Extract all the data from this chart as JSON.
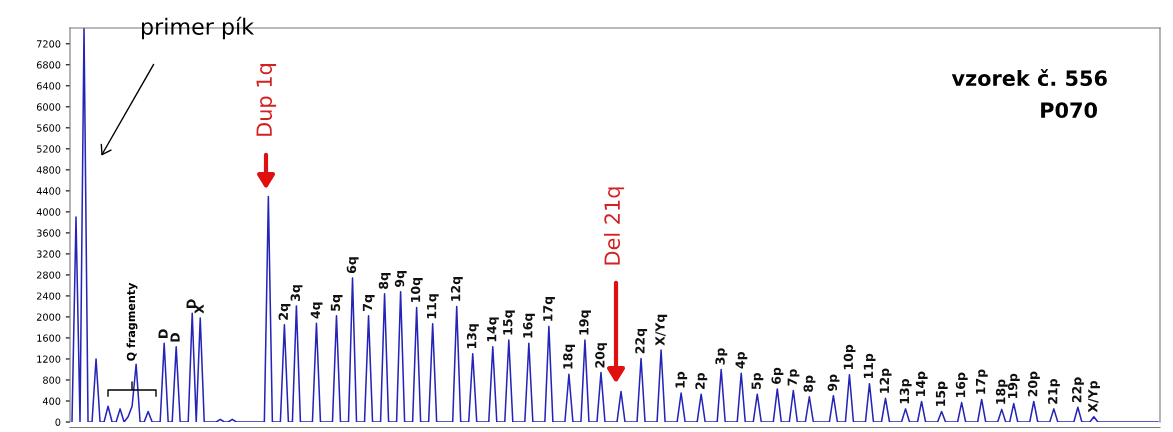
{
  "chart_data": {
    "type": "line",
    "categories": [
      null,
      null,
      null,
      null,
      null,
      null,
      null,
      null,
      null,
      null,
      null,
      null,
      null,
      null,
      null,
      null,
      null,
      null,
      null,
      null,
      null,
      null,
      null,
      "D",
      null,
      null,
      "D",
      null,
      null,
      null,
      "D",
      null,
      "X",
      null,
      null,
      null,
      null,
      null,
      null,
      null,
      null,
      null,
      null,
      null,
      null,
      null,
      null,
      null,
      null,
      null,
      null,
      null,
      null,
      "2q",
      null,
      null,
      "3q",
      null,
      null,
      null,
      null,
      "4q",
      null,
      null,
      null,
      null,
      "5q",
      null,
      null,
      null,
      "6q",
      null,
      null,
      null,
      "7q",
      null,
      null,
      null,
      "8q",
      null,
      null,
      null,
      "9q",
      null,
      null,
      null,
      "10q",
      null,
      null,
      null,
      "11q",
      null,
      null,
      null,
      null,
      null,
      "12q",
      null,
      null,
      null,
      "13q",
      null,
      null,
      null,
      null,
      "14q",
      null,
      null,
      null,
      "15q",
      null,
      null,
      null,
      null,
      "16q",
      null,
      null,
      null,
      null,
      "17q",
      null,
      null,
      null,
      null,
      "18q",
      null,
      null,
      null,
      "19q",
      null,
      null,
      null,
      "20q",
      null,
      null,
      null,
      null,
      null,
      null,
      null,
      null,
      null,
      "22q",
      null,
      null,
      null,
      null,
      "X/Yq",
      null,
      null,
      null,
      null,
      "1p",
      null,
      null,
      null,
      null,
      "2p",
      null,
      null,
      null,
      null,
      "3p",
      null,
      null,
      null,
      null,
      "4p",
      null,
      null,
      null,
      "5p",
      null,
      null,
      null,
      null,
      "6p",
      null,
      null,
      null,
      "7p",
      null,
      null,
      null,
      "8p",
      null,
      null,
      null,
      null,
      null,
      "9p",
      null,
      null,
      null,
      "10p",
      null,
      null,
      null,
      null,
      "11p",
      null,
      null,
      null,
      "12p",
      null,
      null,
      null,
      null,
      "13p",
      null,
      null,
      null,
      "14p",
      null,
      null,
      null,
      null,
      "15p",
      null,
      null,
      null,
      null,
      "16p",
      null,
      null,
      null,
      null,
      "17p",
      null,
      null,
      null,
      null,
      "18p",
      null,
      null,
      "19p",
      null,
      null,
      null,
      null,
      "20p",
      null,
      null,
      null,
      null,
      "21p",
      null,
      null,
      null,
      null,
      null,
      "22p",
      null,
      null,
      null,
      "X/Yp",
      null,
      null,
      null,
      null,
      null,
      null,
      null,
      null,
      null,
      null,
      null,
      null,
      null,
      null,
      null,
      null
    ],
    "series": [
      {
        "color": "#2424b8",
        "values": [
          0,
          3900,
          0,
          7500,
          0,
          0,
          1200,
          0,
          0,
          300,
          0,
          0,
          250,
          0,
          100,
          300,
          1100,
          0,
          0,
          200,
          0,
          0,
          0,
          1500,
          0,
          0,
          1430,
          0,
          0,
          0,
          2070,
          0,
          1980,
          0,
          0,
          0,
          0,
          50,
          0,
          0,
          50,
          0,
          0,
          0,
          0,
          0,
          0,
          0,
          0,
          4290,
          0,
          0,
          0,
          1850,
          0,
          0,
          2210,
          0,
          0,
          0,
          0,
          1880,
          0,
          0,
          0,
          0,
          2020,
          0,
          0,
          0,
          2740,
          0,
          0,
          0,
          2020,
          0,
          0,
          0,
          2440,
          0,
          0,
          0,
          2480,
          0,
          0,
          0,
          2180,
          0,
          0,
          0,
          1870,
          0,
          0,
          0,
          0,
          0,
          2200,
          0,
          0,
          0,
          1300,
          0,
          0,
          0,
          0,
          1430,
          0,
          0,
          0,
          1560,
          0,
          0,
          0,
          0,
          1500,
          0,
          0,
          0,
          0,
          1820,
          0,
          0,
          0,
          0,
          910,
          0,
          0,
          0,
          1560,
          0,
          0,
          0,
          940,
          0,
          0,
          0,
          0,
          580,
          0,
          0,
          0,
          0,
          1210,
          0,
          0,
          0,
          0,
          1370,
          0,
          0,
          0,
          0,
          550,
          0,
          0,
          0,
          0,
          530,
          0,
          0,
          0,
          0,
          1000,
          0,
          0,
          0,
          0,
          930,
          0,
          0,
          0,
          530,
          0,
          0,
          0,
          0,
          630,
          0,
          0,
          0,
          600,
          0,
          0,
          0,
          480,
          0,
          0,
          0,
          0,
          0,
          500,
          0,
          0,
          0,
          900,
          0,
          0,
          0,
          0,
          730,
          0,
          0,
          0,
          450,
          0,
          0,
          0,
          0,
          250,
          0,
          0,
          0,
          390,
          0,
          0,
          0,
          0,
          200,
          0,
          0,
          0,
          0,
          370,
          0,
          0,
          0,
          0,
          430,
          0,
          0,
          0,
          0,
          240,
          0,
          0,
          350,
          0,
          0,
          0,
          0,
          390,
          0,
          0,
          0,
          0,
          250,
          0,
          0,
          0,
          0,
          0,
          280,
          0,
          0,
          0,
          100,
          0,
          0,
          0,
          0,
          0,
          0,
          0,
          0,
          0,
          0,
          0,
          0,
          0,
          0,
          0,
          0
        ]
      }
    ],
    "ylim": [
      0,
      7500
    ],
    "yticks": [
      0,
      400,
      800,
      1200,
      1600,
      2000,
      2400,
      2800,
      3200,
      3600,
      4000,
      4400,
      4800,
      5200,
      5600,
      6000,
      6400,
      6800,
      7200
    ],
    "tick_labels": "y",
    "annotations": [
      "primer pík",
      "Dup 1q",
      "Del 21q",
      "Q fragmenty",
      "vzorek č. 556",
      "P070"
    ]
  }
}
